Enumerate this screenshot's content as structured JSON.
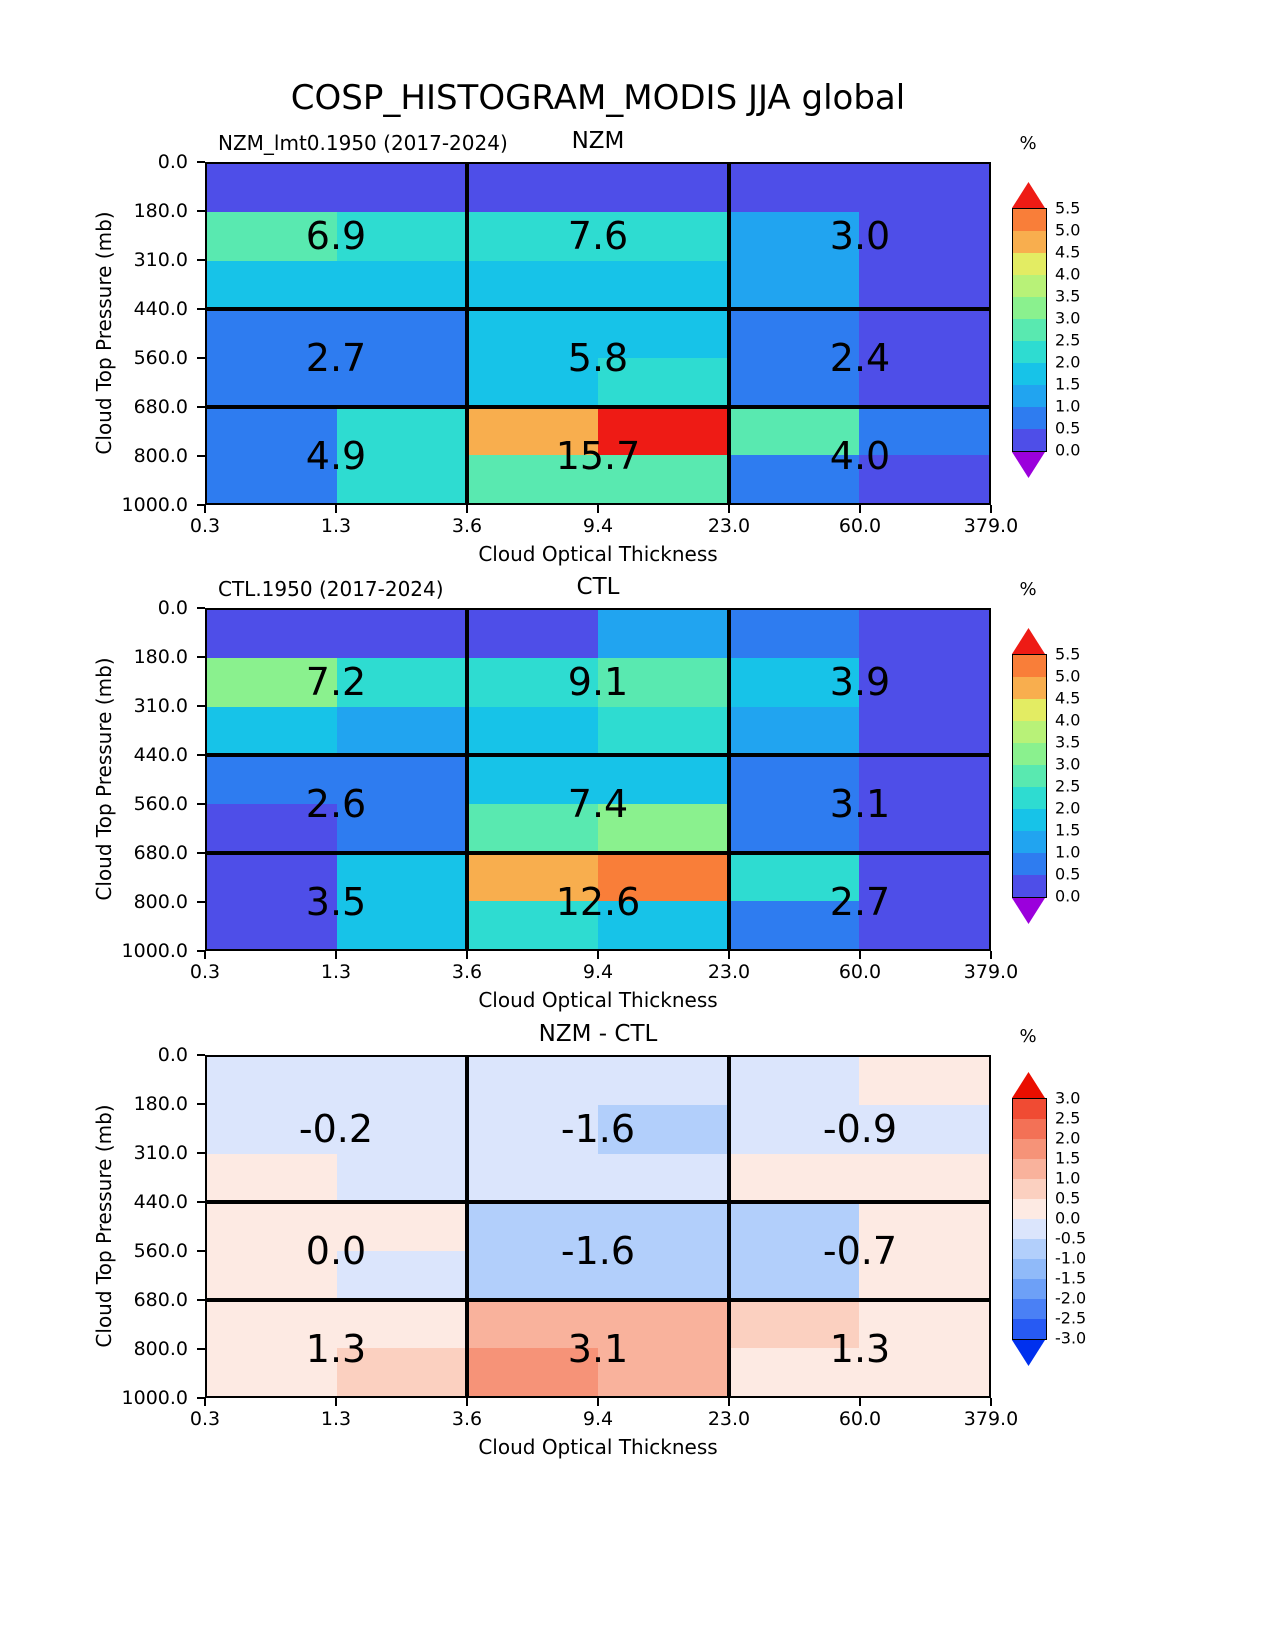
{
  "page_title": "COSP_HISTOGRAM_MODIS JJA global",
  "colormaps": {
    "rainbow": {
      "levels": [
        0.0,
        0.5,
        1.0,
        1.5,
        2.0,
        2.5,
        3.0,
        3.5,
        4.0,
        4.5,
        5.0,
        5.5
      ],
      "colors": [
        "#4e4ee8",
        "#2e7cf0",
        "#21a4f0",
        "#17c3e8",
        "#2edcd1",
        "#59e9b0",
        "#8af18e",
        "#b8f278",
        "#e3ec63",
        "#f8ae4e",
        "#f97e39"
      ],
      "under": "#9b00dc",
      "over": "#ee1b15"
    },
    "bwr": {
      "levels": [
        -3.0,
        -2.5,
        -2.0,
        -1.5,
        -1.0,
        -0.5,
        0.0,
        0.5,
        1.0,
        1.5,
        2.0,
        2.5,
        3.0
      ],
      "colors": [
        "#275af3",
        "#4a80f5",
        "#6da0f7",
        "#90baf9",
        "#b2cffb",
        "#dbe5fc",
        "#fdeae3",
        "#fbd0c0",
        "#f9b29c",
        "#f69378",
        "#f37156",
        "#f04b33"
      ],
      "under": "#0030ee",
      "over": "#ea0e00"
    }
  },
  "chart_data": [
    {
      "type": "heatmap",
      "title": "NZM",
      "subtitle": "NZM_lmt0.1950 (2017-2024)",
      "unit": "%",
      "xlabel": "Cloud Optical Thickness",
      "ylabel": "Cloud Top Pressure (mb)",
      "x_ticks": [
        "0.3",
        "1.3",
        "3.6",
        "9.4",
        "23.0",
        "60.0",
        "379.0"
      ],
      "y_ticks": [
        "0.0",
        "180.0",
        "310.0",
        "440.0",
        "560.0",
        "680.0",
        "800.0",
        "1000.0"
      ],
      "colormap": "rainbow",
      "colorbar_ticks": [
        "5.5",
        "5.0",
        "4.5",
        "4.0",
        "3.5",
        "3.0",
        "2.5",
        "2.0",
        "1.5",
        "1.0",
        "0.5",
        "0.0"
      ],
      "macro_values": [
        [
          "6.9",
          "7.6",
          "3.0"
        ],
        [
          "2.7",
          "5.8",
          "2.4"
        ],
        [
          "4.9",
          "15.7",
          "4.0"
        ]
      ],
      "cell_values": [
        [
          0.3,
          0.3,
          0.3,
          0.3,
          0.3,
          0.3
        ],
        [
          2.7,
          2.2,
          2.2,
          2.2,
          1.2,
          0.3
        ],
        [
          1.7,
          1.7,
          1.7,
          1.7,
          1.2,
          0.3
        ],
        [
          0.8,
          0.8,
          1.7,
          1.7,
          0.8,
          0.3
        ],
        [
          0.8,
          0.8,
          1.7,
          2.2,
          0.8,
          0.3
        ],
        [
          0.8,
          2.2,
          4.7,
          5.7,
          2.7,
          0.8
        ],
        [
          0.8,
          2.2,
          2.7,
          2.7,
          0.8,
          0.3
        ]
      ]
    },
    {
      "type": "heatmap",
      "title": "CTL",
      "subtitle": "CTL.1950 (2017-2024)",
      "unit": "%",
      "xlabel": "Cloud Optical Thickness",
      "ylabel": "Cloud Top Pressure (mb)",
      "x_ticks": [
        "0.3",
        "1.3",
        "3.6",
        "9.4",
        "23.0",
        "60.0",
        "379.0"
      ],
      "y_ticks": [
        "0.0",
        "180.0",
        "310.0",
        "440.0",
        "560.0",
        "680.0",
        "800.0",
        "1000.0"
      ],
      "colormap": "rainbow",
      "colorbar_ticks": [
        "5.5",
        "5.0",
        "4.5",
        "4.0",
        "3.5",
        "3.0",
        "2.5",
        "2.0",
        "1.5",
        "1.0",
        "0.5",
        "0.0"
      ],
      "macro_values": [
        [
          "7.2",
          "9.1",
          "3.9"
        ],
        [
          "2.6",
          "7.4",
          "3.1"
        ],
        [
          "3.5",
          "12.6",
          "2.7"
        ]
      ],
      "cell_values": [
        [
          0.3,
          0.3,
          0.3,
          1.2,
          0.8,
          0.3
        ],
        [
          3.2,
          2.2,
          2.2,
          2.7,
          1.7,
          0.3
        ],
        [
          1.7,
          1.2,
          1.7,
          2.2,
          1.2,
          0.3
        ],
        [
          0.8,
          0.8,
          1.7,
          1.7,
          0.8,
          0.3
        ],
        [
          0.3,
          0.8,
          2.7,
          3.2,
          0.8,
          0.3
        ],
        [
          0.3,
          1.7,
          4.7,
          5.2,
          2.2,
          0.3
        ],
        [
          0.3,
          1.7,
          2.2,
          1.7,
          0.8,
          0.3
        ]
      ]
    },
    {
      "type": "heatmap",
      "title": "NZM - CTL",
      "subtitle": "",
      "unit": "%",
      "xlabel": "Cloud Optical Thickness",
      "ylabel": "Cloud Top Pressure (mb)",
      "x_ticks": [
        "0.3",
        "1.3",
        "3.6",
        "9.4",
        "23.0",
        "60.0",
        "379.0"
      ],
      "y_ticks": [
        "0.0",
        "180.0",
        "310.0",
        "440.0",
        "560.0",
        "680.0",
        "800.0",
        "1000.0"
      ],
      "colormap": "bwr",
      "colorbar_ticks": [
        "3.0",
        "2.5",
        "2.0",
        "1.5",
        "1.0",
        "0.5",
        "0.0",
        "-0.5",
        "-1.0",
        "-1.5",
        "-2.0",
        "-2.5",
        "-3.0"
      ],
      "macro_values": [
        [
          "-0.2",
          "-1.6",
          "-0.9"
        ],
        [
          "0.0",
          "-1.6",
          "-0.7"
        ],
        [
          "1.3",
          "3.1",
          "1.3"
        ]
      ],
      "cell_values": [
        [
          -0.2,
          -0.2,
          -0.2,
          -0.2,
          -0.2,
          0.2
        ],
        [
          -0.2,
          -0.2,
          -0.2,
          -0.8,
          -0.3,
          -0.2
        ],
        [
          0.2,
          -0.2,
          -0.2,
          -0.2,
          0.2,
          0.2
        ],
        [
          0.2,
          0.2,
          -0.8,
          -0.8,
          -0.6,
          0.2
        ],
        [
          0.2,
          -0.2,
          -0.8,
          -0.8,
          -0.6,
          0.2
        ],
        [
          0.3,
          0.3,
          1.2,
          1.2,
          0.7,
          0.2
        ],
        [
          0.2,
          0.7,
          1.7,
          1.2,
          0.3,
          0.2
        ]
      ]
    }
  ]
}
